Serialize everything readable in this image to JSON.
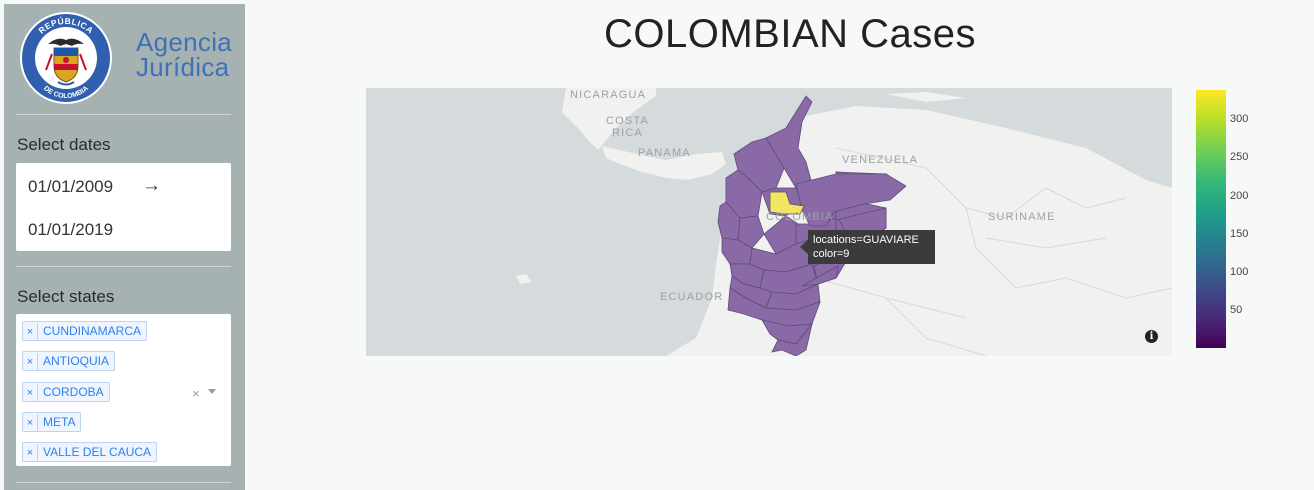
{
  "brand": {
    "line1": "Agencia",
    "line2": "Jurídica",
    "seal_top_text": "REPÚBLICA",
    "seal_bottom_text": "DE COLOMBIA"
  },
  "sidebar": {
    "dates_label": "Select dates",
    "start_date": "01/01/2009",
    "end_date": "01/01/2019",
    "date_arrow": "→",
    "states_label": "Select states",
    "selected_states": [
      {
        "label": "CUNDINAMARCA",
        "remove": "×"
      },
      {
        "label": "ANTIOQUIA",
        "remove": "×"
      },
      {
        "label": "CORDOBA",
        "remove": "×"
      },
      {
        "label": "META",
        "remove": "×"
      },
      {
        "label": "VALLE DEL CAUCA",
        "remove": "×"
      }
    ],
    "clear_all": "×"
  },
  "main": {
    "title": "COLOMBIAN Cases"
  },
  "map": {
    "labels": {
      "nicaragua": "NICARAGUA",
      "costa": "COSTA",
      "rica": "RICA",
      "panama": "PANAMA",
      "venezuela": "VENEZUELA",
      "colombia": "COLOMBIA",
      "suriname": "SURINAME",
      "ecuador": "ECUADOR"
    },
    "tooltip": {
      "line1": "locations=GUAVIARE",
      "line2": "color=9"
    },
    "info_symbol": "i",
    "highlight_color": "#f2e661",
    "region_color": "#8a6aa6",
    "colorbar": {
      "ticks": [
        "300",
        "250",
        "200",
        "150",
        "100",
        "50"
      ],
      "colors": [
        "#fde725",
        "#35b779",
        "#31688e",
        "#440154"
      ]
    }
  }
}
